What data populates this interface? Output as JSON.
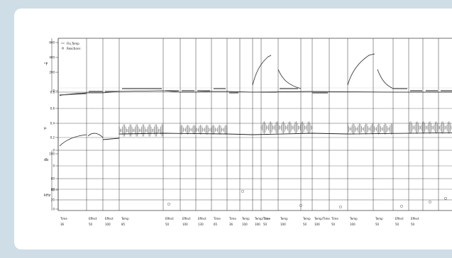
{
  "chart_data": {
    "type": "line",
    "title": "",
    "legend": {
      "placement": "top-left",
      "entries": [
        "Flo,Temp",
        "Reactions"
      ]
    },
    "panels": [
      {
        "name": "top",
        "ylabel": "°F",
        "ticks": [
          "600",
          "400",
          "200",
          "0"
        ]
      },
      {
        "name": "middle",
        "ylabel": "μ",
        "ticks": [
          "0.8",
          "0.6",
          "0.4",
          "0.2",
          "0"
        ]
      },
      {
        "name": "lower",
        "ylabel": "db",
        "ticks": [
          "100",
          "0",
          "80",
          "60"
        ]
      },
      {
        "name": "bottom",
        "ylabel": "kHz",
        "ticks": [
          "40",
          "20",
          "0"
        ]
      }
    ],
    "x_segments": [
      {
        "label": "Time",
        "value": "36"
      },
      {
        "label": "Effect",
        "value": "50"
      },
      {
        "label": "Effect",
        "value": "100"
      },
      {
        "label": "Temp",
        "value": "85"
      },
      {
        "label": "Effect",
        "value": "50"
      },
      {
        "label": "Effect",
        "value": "100"
      },
      {
        "label": "Effect",
        "value": "130"
      },
      {
        "label": "Time",
        "value": "65"
      },
      {
        "label": "Time",
        "value": "36"
      },
      {
        "label": "Temp",
        "value": "100"
      },
      {
        "label": "Temp/Time",
        "value": "100"
      },
      {
        "label": "Time",
        "value": "50"
      },
      {
        "label": "Temp",
        "value": "100"
      },
      {
        "label": "Temp",
        "value": "50"
      },
      {
        "label": "Temp/Time",
        "value": "100"
      },
      {
        "label": "Time",
        "value": "50"
      },
      {
        "label": "Temp",
        "value": "100"
      },
      {
        "label": "Temp",
        "value": "50"
      },
      {
        "label": "Effect",
        "value": "50"
      },
      {
        "label": "Effect",
        "value": "50"
      }
    ],
    "grid": true
  }
}
